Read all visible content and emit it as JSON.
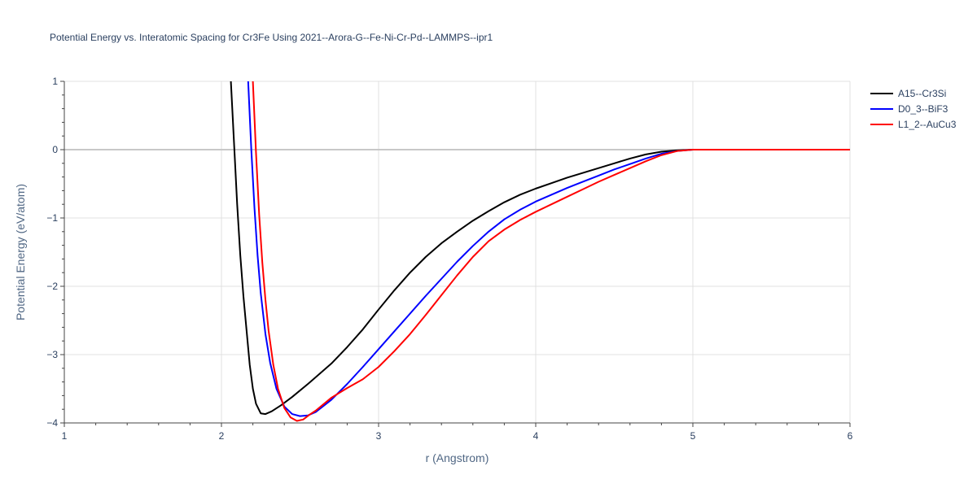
{
  "chart_data": {
    "type": "line",
    "title": "Potential Energy vs. Interatomic Spacing for Cr3Fe Using 2021--Arora-G--Fe-Ni-Cr-Pd--LAMMPS--ipr1",
    "xlabel": "r (Angstrom)",
    "ylabel": "Potential Energy (eV/atom)",
    "xlim": [
      1,
      6
    ],
    "ylim": [
      -4,
      1
    ],
    "x_ticks": [
      1,
      2,
      3,
      4,
      5,
      6
    ],
    "y_ticks": [
      1,
      0,
      -1,
      -2,
      -3,
      -4
    ],
    "x_tick_labels": [
      "1",
      "2",
      "3",
      "4",
      "5",
      "6"
    ],
    "y_tick_labels": [
      "1",
      "0",
      "−1",
      "−2",
      "−3",
      "−4"
    ],
    "grid": true,
    "legend_position": "top-right",
    "series": [
      {
        "name": "A15--Cr3Si",
        "color": "#000000",
        "x": [
          2.06,
          2.08,
          2.1,
          2.12,
          2.14,
          2.16,
          2.18,
          2.2,
          2.22,
          2.25,
          2.28,
          2.32,
          2.38,
          2.45,
          2.55,
          2.7,
          2.8,
          2.9,
          3.0,
          3.1,
          3.2,
          3.3,
          3.4,
          3.5,
          3.6,
          3.7,
          3.8,
          3.9,
          4.0,
          4.1,
          4.2,
          4.3,
          4.4,
          4.5,
          4.6,
          4.7,
          4.8,
          4.9,
          5.0,
          5.2,
          5.5,
          6.0
        ],
        "y": [
          1.0,
          0.1,
          -0.8,
          -1.55,
          -2.15,
          -2.65,
          -3.15,
          -3.5,
          -3.72,
          -3.86,
          -3.87,
          -3.83,
          -3.74,
          -3.62,
          -3.43,
          -3.13,
          -2.89,
          -2.63,
          -2.34,
          -2.06,
          -1.8,
          -1.57,
          -1.37,
          -1.2,
          -1.04,
          -0.9,
          -0.77,
          -0.66,
          -0.57,
          -0.49,
          -0.41,
          -0.34,
          -0.27,
          -0.2,
          -0.13,
          -0.07,
          -0.03,
          -0.01,
          0.0,
          0.0,
          0.0,
          0.0
        ]
      },
      {
        "name": "D0_3--BiF3",
        "color": "#0000ff",
        "x": [
          2.17,
          2.19,
          2.21,
          2.23,
          2.25,
          2.28,
          2.31,
          2.35,
          2.4,
          2.45,
          2.5,
          2.55,
          2.6,
          2.7,
          2.8,
          2.9,
          3.0,
          3.1,
          3.2,
          3.3,
          3.4,
          3.5,
          3.6,
          3.7,
          3.8,
          3.9,
          4.0,
          4.1,
          4.2,
          4.3,
          4.4,
          4.5,
          4.6,
          4.7,
          4.8,
          4.9,
          5.0,
          5.2,
          5.5,
          6.0
        ],
        "y": [
          1.0,
          0.0,
          -0.85,
          -1.55,
          -2.1,
          -2.7,
          -3.12,
          -3.5,
          -3.76,
          -3.87,
          -3.9,
          -3.89,
          -3.84,
          -3.66,
          -3.43,
          -3.18,
          -2.92,
          -2.66,
          -2.4,
          -2.14,
          -1.89,
          -1.64,
          -1.41,
          -1.2,
          -1.02,
          -0.88,
          -0.76,
          -0.66,
          -0.56,
          -0.47,
          -0.38,
          -0.29,
          -0.21,
          -0.13,
          -0.06,
          -0.02,
          0.0,
          0.0,
          0.0,
          0.0
        ]
      },
      {
        "name": "L1_2--AuCu3",
        "color": "#ff0000",
        "x": [
          2.2,
          2.22,
          2.24,
          2.26,
          2.28,
          2.3,
          2.33,
          2.36,
          2.4,
          2.44,
          2.48,
          2.52,
          2.56,
          2.6,
          2.7,
          2.8,
          2.9,
          3.0,
          3.1,
          3.2,
          3.3,
          3.4,
          3.5,
          3.6,
          3.7,
          3.8,
          3.9,
          4.0,
          4.1,
          4.2,
          4.3,
          4.4,
          4.5,
          4.6,
          4.7,
          4.8,
          4.9,
          5.0,
          5.2,
          5.5,
          6.0
        ],
        "y": [
          1.0,
          -0.05,
          -0.95,
          -1.65,
          -2.2,
          -2.65,
          -3.15,
          -3.5,
          -3.78,
          -3.92,
          -3.97,
          -3.95,
          -3.88,
          -3.82,
          -3.63,
          -3.49,
          -3.36,
          -3.18,
          -2.95,
          -2.7,
          -2.42,
          -2.13,
          -1.84,
          -1.57,
          -1.34,
          -1.17,
          -1.03,
          -0.91,
          -0.8,
          -0.69,
          -0.58,
          -0.47,
          -0.37,
          -0.27,
          -0.17,
          -0.08,
          -0.02,
          0.0,
          0.0,
          0.0,
          0.0
        ]
      }
    ]
  }
}
